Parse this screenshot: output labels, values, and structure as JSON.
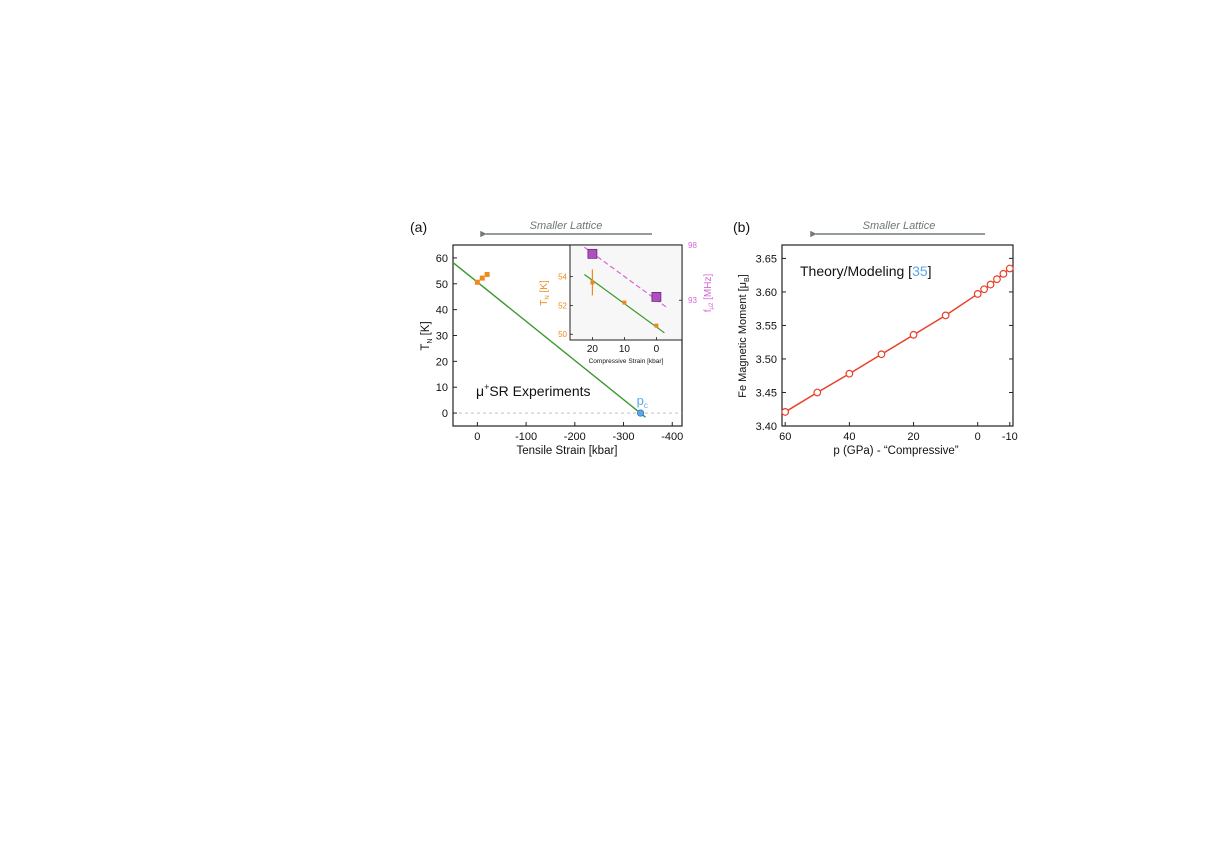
{
  "colors": {
    "green": "#3a9a2c",
    "orange": "#f08a1e",
    "magenta": "#d466d8",
    "red": "#e8402a",
    "blue": "#5aa6ea",
    "arrow": "#707a7a",
    "zero_line": "#b8b8b8",
    "inset_bg": "#f7f7f7"
  },
  "chart_data": [
    {
      "panel_label": "(a)",
      "type": "scatter",
      "header_arrow_label": "Smaller Lattice",
      "xlabel": "Tensile Strain [kbar]",
      "ylabel": "T",
      "ylabel_sub": "N",
      "ylabel_unit": "[K]",
      "xlim": [
        50,
        -420
      ],
      "ylim": [
        -5,
        65
      ],
      "xticks": [
        0,
        -100,
        -200,
        -300,
        -400
      ],
      "xtick_labels": [
        "0",
        "-100",
        "-200",
        "-300",
        "-400"
      ],
      "yticks": [
        0,
        10,
        20,
        30,
        40,
        50,
        60
      ],
      "ytick_labels": [
        "0",
        "10",
        "20",
        "30",
        "40",
        "50",
        "60"
      ],
      "annotation_mu": "μ",
      "annotation_plus": "+",
      "annotation_text": "SR Experiments",
      "pc_label": "p",
      "pc_sub": "c",
      "points": [
        {
          "x": -20,
          "y": 53.6
        },
        {
          "x": -10,
          "y": 52.2
        },
        {
          "x": 0,
          "y": 50.6
        }
      ],
      "critical_point": {
        "x": -335,
        "y": 0
      },
      "fit_line": [
        {
          "x": 50,
          "y": 58.2
        },
        {
          "x": -345,
          "y": -1.6
        }
      ],
      "zero_line_y": 0,
      "inset": {
        "xlabel": "Compressive Strain [kbar]",
        "ylabel_left": "T",
        "ylabel_left_sub": "N",
        "ylabel_left_unit": "[K]",
        "ylabel_right": "f",
        "ylabel_right_sub": "μ2",
        "ylabel_right_unit": "[MHz]",
        "xlim": [
          27,
          -8
        ],
        "ylim_left": [
          49.6,
          56.2
        ],
        "ylim_right": [
          89.4,
          98
        ],
        "xticks": [
          20,
          10,
          0
        ],
        "xtick_labels": [
          "20",
          "10",
          "0"
        ],
        "yticks_left": [
          50,
          52,
          54
        ],
        "ytick_labels_left": [
          "50",
          "52",
          "54"
        ],
        "yticks_right": [
          93,
          98
        ],
        "ytick_labels_right": [
          "93",
          "98"
        ],
        "tn_points": [
          {
            "x": 20,
            "y": 53.6,
            "err": 0.9
          },
          {
            "x": 10,
            "y": 52.2,
            "err": 0
          },
          {
            "x": 0,
            "y": 50.6,
            "err": 0
          }
        ],
        "tn_fit": [
          {
            "x": 22.5,
            "y": 54.15
          },
          {
            "x": -2.5,
            "y": 50.1
          }
        ],
        "freq_points": [
          {
            "x": 20,
            "y": 97.2
          },
          {
            "x": 0,
            "y": 93.3
          }
        ],
        "freq_fit": [
          {
            "x": 22.5,
            "y": 97.8
          },
          {
            "x": -3,
            "y": 92.4
          }
        ]
      }
    },
    {
      "panel_label": "(b)",
      "type": "line",
      "header_arrow_label": "Smaller Lattice",
      "xlabel": "p (GPa) - “Compressive”",
      "ylabel": "Fe Magnetic Moment [μ",
      "ylabel_sub": "B",
      "ylabel_end": "]",
      "xlim": [
        61,
        -11
      ],
      "ylim": [
        3.4,
        3.67
      ],
      "xticks": [
        60,
        40,
        20,
        0,
        -10
      ],
      "xtick_labels": [
        "60",
        "40",
        "20",
        "0",
        "-10"
      ],
      "yticks": [
        3.4,
        3.45,
        3.5,
        3.55,
        3.6,
        3.65
      ],
      "ytick_labels": [
        "3.40",
        "3.45",
        "3.50",
        "3.55",
        "3.60",
        "3.65"
      ],
      "annotation_text": "Theory/Modeling [",
      "annotation_ref": "35",
      "annotation_end": "]",
      "x": [
        60,
        50,
        40,
        30,
        20,
        10,
        0,
        -2,
        -4,
        -6,
        -8,
        -10
      ],
      "y": [
        3.421,
        3.45,
        3.478,
        3.507,
        3.536,
        3.565,
        3.597,
        3.604,
        3.611,
        3.619,
        3.627,
        3.635
      ]
    }
  ]
}
